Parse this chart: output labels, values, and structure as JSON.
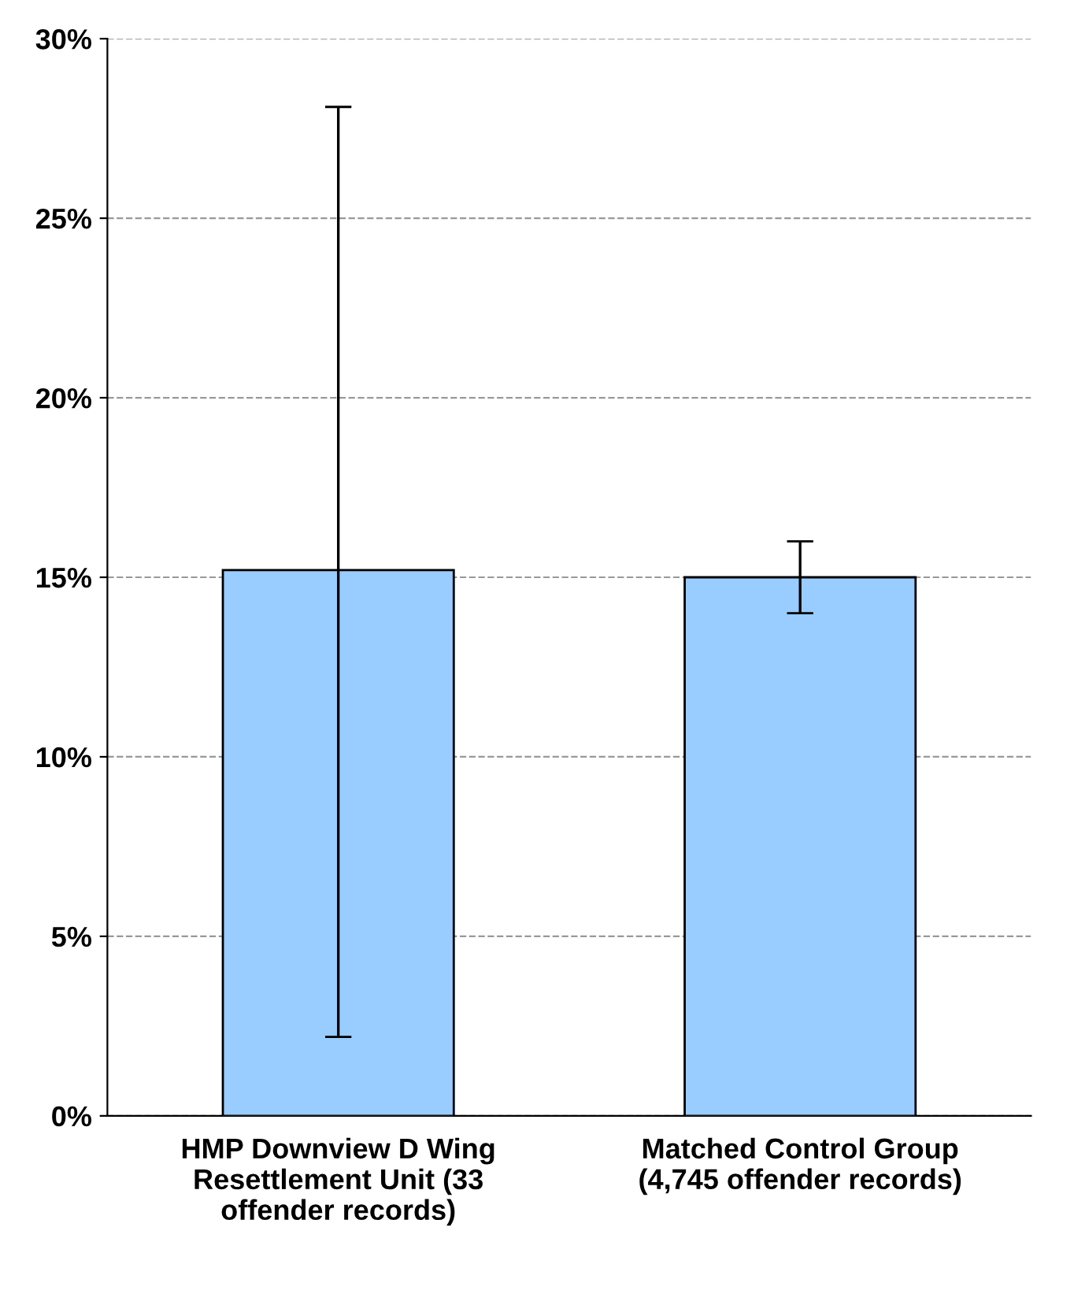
{
  "chart_data": {
    "type": "bar",
    "categories": [
      "HMP Downview D Wing\nResettlement Unit (33\noffender records)",
      "Matched Control Group\n(4,745 offender records)"
    ],
    "values": [
      15.2,
      15.0
    ],
    "errors": [
      [
        2.2,
        28.1
      ],
      [
        14.0,
        16.0
      ]
    ],
    "color": "#99ccff",
    "ylim": [
      0,
      30
    ],
    "yticks": [
      {
        "value": 0,
        "label": "0%"
      },
      {
        "value": 5,
        "label": "5%"
      },
      {
        "value": 10,
        "label": "10%"
      },
      {
        "value": 15,
        "label": "15%"
      },
      {
        "value": 20,
        "label": "20%"
      },
      {
        "value": 25,
        "label": "25%"
      },
      {
        "value": 30,
        "label": "30%"
      }
    ],
    "grid": "y",
    "line_style": "dashed"
  }
}
